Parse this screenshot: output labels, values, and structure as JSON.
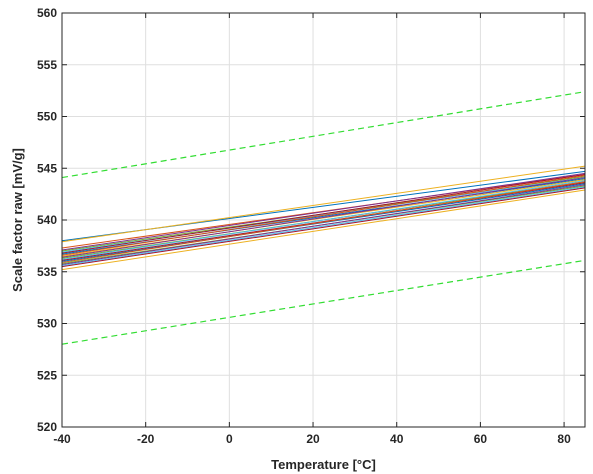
{
  "chart_data": {
    "type": "line",
    "title": "",
    "xlabel": "Temperature [°C]",
    "ylabel": "Scale factor raw [mV/g]",
    "xlim": [
      -40,
      85
    ],
    "ylim": [
      520,
      560
    ],
    "xticks": [
      -40,
      -20,
      0,
      20,
      40,
      60,
      80
    ],
    "yticks": [
      520,
      525,
      530,
      535,
      540,
      545,
      550,
      555,
      560
    ],
    "grid": true,
    "legend": "none",
    "limits": [
      {
        "style": "dashed",
        "color": "#33dd33",
        "x": [
          -40,
          85
        ],
        "y": [
          544.1,
          552.4
        ]
      },
      {
        "style": "dashed",
        "color": "#33dd33",
        "x": [
          -40,
          85
        ],
        "y": [
          528.0,
          536.1
        ]
      }
    ],
    "series": [
      {
        "color": "#0072bd",
        "x": [
          -40,
          85
        ],
        "y": [
          538.0,
          544.7
        ]
      },
      {
        "color": "#edb120",
        "x": [
          -40,
          85
        ],
        "y": [
          537.9,
          545.2
        ]
      },
      {
        "color": "#d95319",
        "x": [
          -40,
          85
        ],
        "y": [
          537.3,
          544.4
        ]
      },
      {
        "color": "#7e2f8e",
        "x": [
          -40,
          85
        ],
        "y": [
          537.1,
          544.5
        ]
      },
      {
        "color": "#77ac30",
        "x": [
          -40,
          85
        ],
        "y": [
          537.0,
          544.2
        ]
      },
      {
        "color": "#4dbeee",
        "x": [
          -40,
          85
        ],
        "y": [
          536.9,
          544.1
        ]
      },
      {
        "color": "#a2142f",
        "x": [
          -40,
          85
        ],
        "y": [
          536.8,
          544.4
        ]
      },
      {
        "color": "#0072bd",
        "x": [
          -40,
          85
        ],
        "y": [
          536.7,
          544.0
        ]
      },
      {
        "color": "#d95319",
        "x": [
          -40,
          85
        ],
        "y": [
          536.6,
          544.3
        ]
      },
      {
        "color": "#edb120",
        "x": [
          -40,
          85
        ],
        "y": [
          536.5,
          543.9
        ]
      },
      {
        "color": "#7e2f8e",
        "x": [
          -40,
          85
        ],
        "y": [
          536.4,
          544.1
        ]
      },
      {
        "color": "#77ac30",
        "x": [
          -40,
          85
        ],
        "y": [
          536.3,
          543.7
        ]
      },
      {
        "color": "#4dbeee",
        "x": [
          -40,
          85
        ],
        "y": [
          536.2,
          543.8
        ]
      },
      {
        "color": "#a2142f",
        "x": [
          -40,
          85
        ],
        "y": [
          536.1,
          543.6
        ]
      },
      {
        "color": "#0072bd",
        "x": [
          -40,
          85
        ],
        "y": [
          536.0,
          543.5
        ]
      },
      {
        "color": "#d95319",
        "x": [
          -40,
          85
        ],
        "y": [
          535.9,
          543.7
        ]
      },
      {
        "color": "#77ac30",
        "x": [
          -40,
          85
        ],
        "y": [
          535.8,
          543.3
        ]
      },
      {
        "color": "#7e2f8e",
        "x": [
          -40,
          85
        ],
        "y": [
          535.7,
          543.4
        ]
      },
      {
        "color": "#4dbeee",
        "x": [
          -40,
          85
        ],
        "y": [
          535.6,
          543.2
        ]
      },
      {
        "color": "#a2142f",
        "x": [
          -40,
          85
        ],
        "y": [
          535.5,
          543.1
        ]
      },
      {
        "color": "#edb120",
        "x": [
          -40,
          85
        ],
        "y": [
          535.2,
          542.9
        ]
      }
    ]
  }
}
